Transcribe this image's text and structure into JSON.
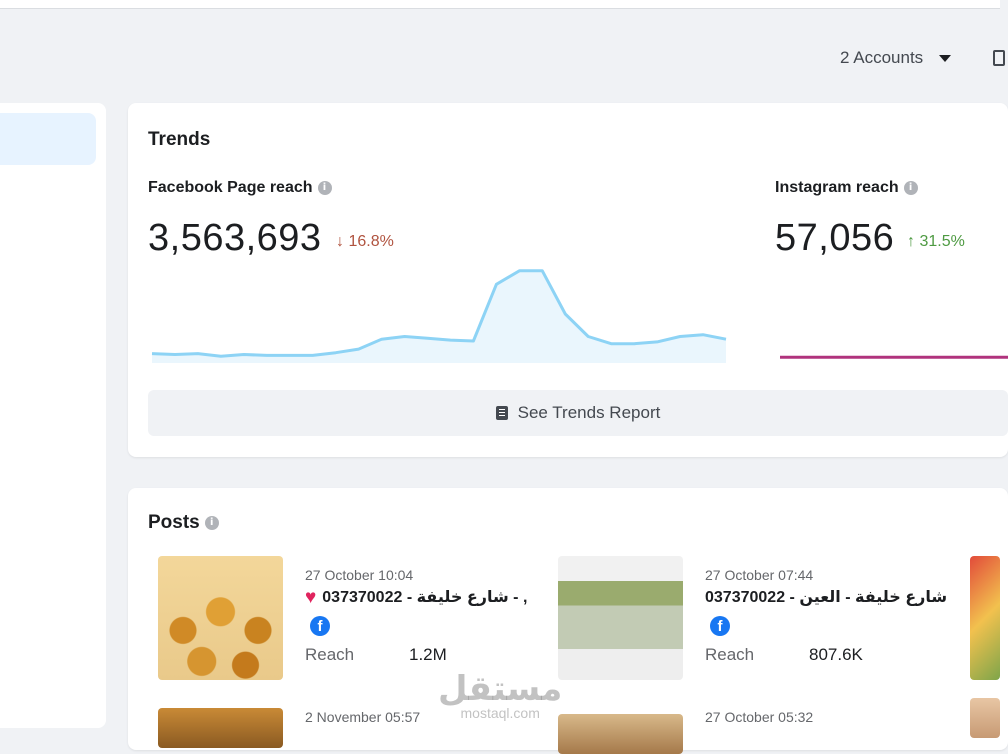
{
  "header": {
    "accounts_label": "2 Accounts"
  },
  "trends": {
    "title": "Trends",
    "facebook": {
      "label": "Facebook Page reach",
      "value": "3,563,693",
      "delta": "↓ 16.8%"
    },
    "instagram": {
      "label": "Instagram reach",
      "value": "57,056",
      "delta": "↑ 31.5%"
    },
    "see_report_label": "See Trends Report",
    "colors": {
      "facebook_line": "#8dd3f5",
      "facebook_fill": "#eaf6fd",
      "instagram_line": "#b0337d"
    }
  },
  "chart_data": [
    {
      "type": "area",
      "series": [
        {
          "values": [
            6,
            5,
            6,
            3,
            5,
            4,
            4,
            4,
            7,
            11,
            22,
            25,
            23,
            21,
            20,
            83,
            98,
            98,
            50,
            25,
            17,
            17,
            19,
            25,
            27,
            22
          ]
        }
      ]
    },
    {
      "type": "line",
      "series": [
        {
          "values": [
            2,
            2,
            2,
            2,
            2,
            2,
            2,
            2,
            2,
            2
          ]
        }
      ]
    }
  ],
  "posts": {
    "title": "Posts",
    "items": [
      {
        "date": "27 October 10:04",
        "text": "037370022 - شارع خليفة - ,",
        "reach_label": "Reach",
        "reach_value": "1.2M"
      },
      {
        "date": "27 October 07:44",
        "text": "037370022 - شارع خليفة - العين",
        "reach_label": "Reach",
        "reach_value": "807.6K"
      },
      {
        "date": "2 November 05:57"
      },
      {
        "date": "27 October 05:32"
      }
    ]
  },
  "watermark": {
    "arabic": "مستقل",
    "latin": "mostaql.com"
  }
}
